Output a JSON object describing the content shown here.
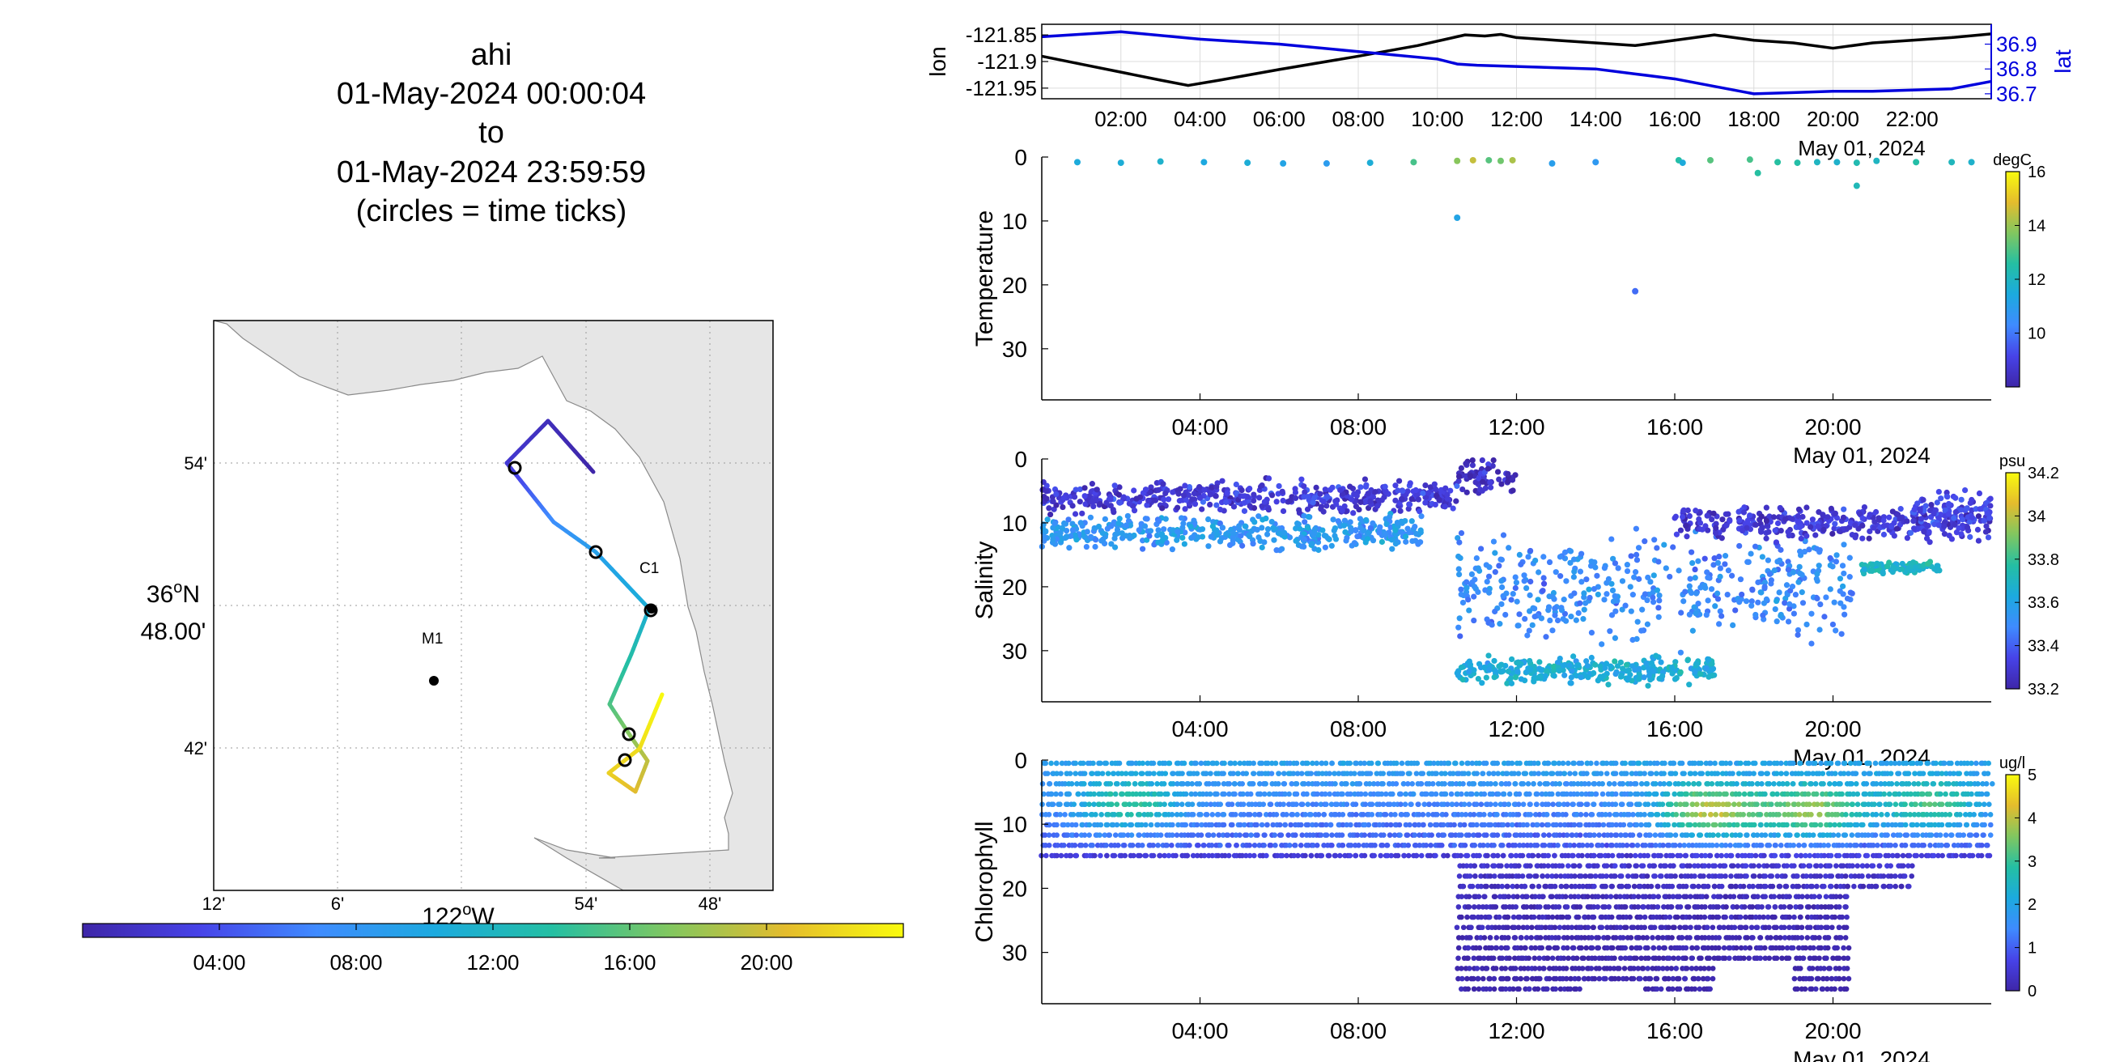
{
  "title": {
    "lines": [
      "ahi",
      "01-May-2024 00:00:04",
      "to",
      "01-May-2024 23:59:59",
      "(circles = time ticks)"
    ]
  },
  "map": {
    "lon_ticks": [
      "12'",
      "6'",
      "54'",
      "48'"
    ],
    "lon_main": "122",
    "lon_main_suffix": "W",
    "lat_ticks": [
      "54'",
      "42'"
    ],
    "lat_main_deg": "36",
    "lat_main_n": "N",
    "lat_main_min": "48.00'",
    "degree_sup": "o",
    "station_labels": [
      "C1",
      "M1"
    ],
    "colors": {
      "land": "#e6e6e6",
      "coast": "#8a8a8a"
    }
  },
  "time_colorbar": {
    "tick_labels": [
      "04:00",
      "08:00",
      "12:00",
      "16:00",
      "20:00"
    ],
    "colormap": [
      "#3e26a8",
      "#4743e8",
      "#3f8bff",
      "#1caadf",
      "#24bfa3",
      "#81c760",
      "#e4bc2d",
      "#f9fb0e"
    ]
  },
  "chart_data": [
    {
      "type": "line",
      "panel": "position",
      "x_unit": "hours since 00:00, 01-May-2024",
      "xlim": [
        0,
        24
      ],
      "x_tick_labels": [
        "02:00",
        "04:00",
        "06:00",
        "08:00",
        "10:00",
        "12:00",
        "14:00",
        "16:00",
        "18:00",
        "20:00",
        "22:00"
      ],
      "date_label": "May 01, 2024",
      "left_axis": {
        "label": "lon",
        "ylim": [
          -121.97,
          -121.83
        ],
        "tick_labels": [
          "-121.85",
          "-121.9",
          "-121.95"
        ],
        "color": "#000000"
      },
      "right_axis": {
        "label": "lat",
        "ylim": [
          36.68,
          36.98
        ],
        "tick_labels": [
          "36.9",
          "36.8",
          "36.7"
        ],
        "color": "#0000dd"
      },
      "series": [
        {
          "name": "lon",
          "axis": "left",
          "color": "#000000",
          "x": [
            0,
            1,
            2,
            3,
            3.7,
            4.5,
            6,
            8,
            9.5,
            10.7,
            11.2,
            11.6,
            12,
            13,
            14,
            15,
            16,
            17,
            18,
            19,
            20,
            21,
            22,
            23,
            24
          ],
          "y": [
            -121.89,
            -121.905,
            -121.92,
            -121.935,
            -121.945,
            -121.935,
            -121.915,
            -121.89,
            -121.87,
            -121.85,
            -121.852,
            -121.849,
            -121.855,
            -121.86,
            -121.865,
            -121.87,
            -121.86,
            -121.85,
            -121.86,
            -121.865,
            -121.875,
            -121.865,
            -121.86,
            -121.855,
            -121.848
          ]
        },
        {
          "name": "lat",
          "axis": "right",
          "color": "#0000dd",
          "x": [
            0,
            2,
            4,
            6,
            8,
            10,
            10.5,
            11,
            12,
            14,
            15,
            16,
            17,
            18,
            19,
            20,
            21,
            22,
            23,
            24
          ],
          "y": [
            36.93,
            36.95,
            36.92,
            36.9,
            36.87,
            36.84,
            36.82,
            36.815,
            36.81,
            36.8,
            36.78,
            36.76,
            36.73,
            36.7,
            36.705,
            36.71,
            36.71,
            36.715,
            36.72,
            36.75
          ]
        }
      ]
    },
    {
      "type": "scatter",
      "panel": "temperature",
      "ylabel": "Temperature",
      "y_reversed": true,
      "ylim": [
        0,
        38
      ],
      "y_ticks": [
        0,
        10,
        20,
        30
      ],
      "xlim": [
        0,
        24
      ],
      "x_tick_labels": [
        "04:00",
        "08:00",
        "12:00",
        "16:00",
        "20:00"
      ],
      "date_label": "May 01, 2024",
      "colorbar": {
        "unit": "degC",
        "clim": [
          8,
          16
        ],
        "tick_labels": [
          "16",
          "14",
          "12",
          "10"
        ]
      },
      "points": [
        [
          0.9,
          0.8,
          11.5
        ],
        [
          2,
          0.9,
          11.6
        ],
        [
          3,
          0.7,
          11.8
        ],
        [
          4.1,
          0.8,
          11.4
        ],
        [
          5.2,
          0.9,
          11.6
        ],
        [
          6.1,
          1.0,
          11.2
        ],
        [
          7.2,
          1.0,
          10.9
        ],
        [
          8.3,
          0.9,
          11.6
        ],
        [
          9.4,
          0.8,
          13.0
        ],
        [
          10.5,
          0.6,
          13.8
        ],
        [
          10.9,
          0.5,
          14.5
        ],
        [
          11.3,
          0.5,
          13.2
        ],
        [
          11.6,
          0.6,
          13.5
        ],
        [
          11.9,
          0.5,
          14.2
        ],
        [
          12.9,
          1.0,
          11.0
        ],
        [
          14,
          0.8,
          10.8
        ],
        [
          16.1,
          0.5,
          12.5
        ],
        [
          16.2,
          0.9,
          11.5
        ],
        [
          16.9,
          0.5,
          13.2
        ],
        [
          17.9,
          0.4,
          13.0
        ],
        [
          18.6,
          0.8,
          12.6
        ],
        [
          19.1,
          0.9,
          12.5
        ],
        [
          19.6,
          0.8,
          12.0
        ],
        [
          20.1,
          0.8,
          11.8
        ],
        [
          20.6,
          0.9,
          12.3
        ],
        [
          21.1,
          0.6,
          12.0
        ],
        [
          22.1,
          0.8,
          12.5
        ],
        [
          23.0,
          0.8,
          12.1
        ],
        [
          23.5,
          0.8,
          11.8
        ],
        [
          18.1,
          2.5,
          12.6
        ],
        [
          20.6,
          4.5,
          12.2
        ],
        [
          10.5,
          9.5,
          11.2
        ],
        [
          15.0,
          21.0,
          9.8
        ]
      ]
    },
    {
      "type": "scatter",
      "panel": "salinity",
      "ylabel": "Salinity",
      "y_reversed": true,
      "ylim": [
        0,
        38
      ],
      "y_ticks": [
        0,
        10,
        20,
        30
      ],
      "xlim": [
        0,
        24
      ],
      "x_tick_labels": [
        "04:00",
        "08:00",
        "12:00",
        "16:00",
        "20:00"
      ],
      "date_label": "May 01, 2024",
      "colorbar": {
        "unit": "psu",
        "clim": [
          33.2,
          34.2
        ],
        "tick_labels": [
          "34.2",
          "34",
          "33.8",
          "33.6",
          "33.4",
          "33.2"
        ]
      },
      "point_groups": [
        {
          "x_range": [
            0,
            10.5
          ],
          "depth_mean": 6,
          "depth_spread": 2.5,
          "value": 33.3
        },
        {
          "x_range": [
            0,
            9.6
          ],
          "depth_mean": 11.5,
          "depth_spread": 2.5,
          "value": 33.55
        },
        {
          "x_range": [
            10.5,
            12
          ],
          "depth_mean": 3,
          "depth_spread": 3,
          "value": 33.25
        },
        {
          "x_range": [
            10.5,
            17
          ],
          "depth_mean": 33,
          "depth_spread": 2,
          "value": 33.65
        },
        {
          "x_range": [
            10.5,
            20.5
          ],
          "depth_mean": 20,
          "depth_spread": 8,
          "value": 33.5
        },
        {
          "x_range": [
            16,
            24
          ],
          "depth_mean": 10,
          "depth_spread": 2.5,
          "value": 33.3
        },
        {
          "x_range": [
            20.7,
            22.7
          ],
          "depth_mean": 17,
          "depth_spread": 1,
          "value": 33.7
        },
        {
          "x_range": [
            22,
            24
          ],
          "depth_mean": 8,
          "depth_spread": 2.5,
          "value": 33.35
        }
      ]
    },
    {
      "type": "scatter",
      "panel": "chlorophyll",
      "ylabel": "Chlorophyll",
      "y_reversed": true,
      "ylim": [
        0,
        38
      ],
      "y_ticks": [
        0,
        10,
        20,
        30
      ],
      "xlim": [
        0,
        24
      ],
      "x_tick_labels": [
        "04:00",
        "08:00",
        "12:00",
        "16:00",
        "20:00"
      ],
      "date_label": "May 01, 2024",
      "colorbar": {
        "unit": "ug/l",
        "clim": [
          0,
          5
        ],
        "tick_labels": [
          "5",
          "4",
          "3",
          "2",
          "1",
          "0"
        ]
      },
      "profiles": [
        {
          "x_range": [
            0,
            10.5
          ],
          "max_depth": 16
        },
        {
          "x_range": [
            10.5,
            13.7
          ],
          "max_depth": 36
        },
        {
          "x_range": [
            13.7,
            15.2
          ],
          "max_depth": 35
        },
        {
          "x_range": [
            15.2,
            17
          ],
          "max_depth": 36
        },
        {
          "x_range": [
            17,
            19
          ],
          "max_depth": 31
        },
        {
          "x_range": [
            19,
            20.4
          ],
          "max_depth": 36
        },
        {
          "x_range": [
            20.4,
            22
          ],
          "max_depth": 21
        },
        {
          "x_range": [
            22,
            24
          ],
          "max_depth": 16
        }
      ],
      "hotspots": [
        {
          "x": 2.2,
          "depth": 7,
          "value": 3.2
        },
        {
          "x": 16.9,
          "depth": 8,
          "value": 4.3
        },
        {
          "x": 19.5,
          "depth": 8,
          "value": 4.0
        },
        {
          "x": 22.5,
          "depth": 7,
          "value": 3.3
        }
      ]
    }
  ]
}
